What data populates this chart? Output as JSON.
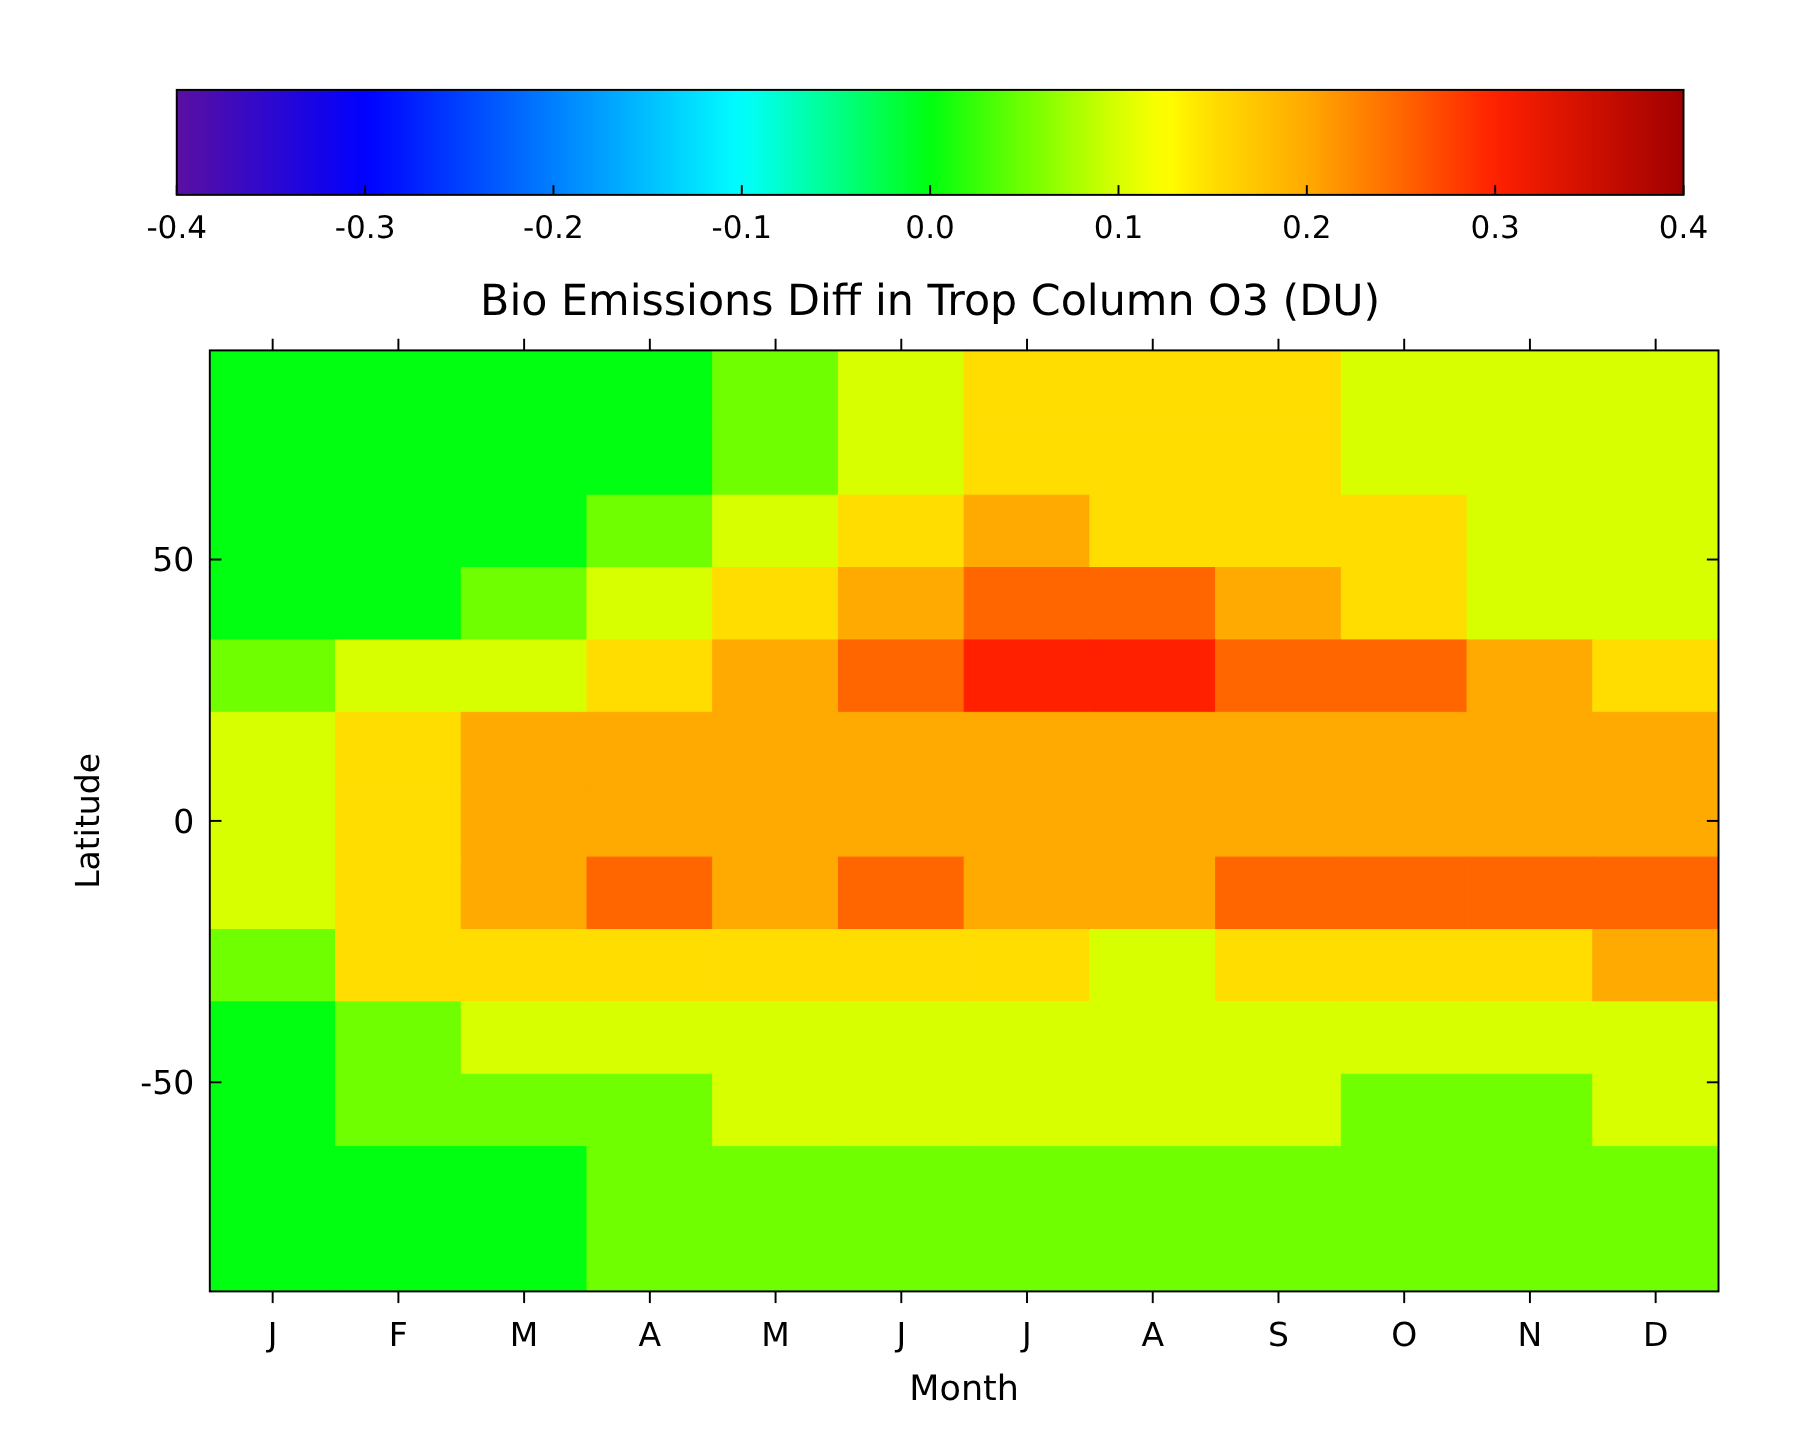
{
  "chart_data": {
    "type": "heatmap",
    "xlabel": "Month",
    "ylabel": "Latitude",
    "clabel": "Bio Emissions Diff in Trop Column O3 (DU)",
    "categories": [
      "J",
      "F",
      "M",
      "A",
      "M",
      "J",
      "J",
      "A",
      "S",
      "O",
      "N",
      "D"
    ],
    "ylim": [
      -90,
      90
    ],
    "yticks": [
      -50,
      0,
      50
    ],
    "clim": [
      -0.4,
      0.4
    ],
    "cticks": [
      -0.4,
      -0.3,
      -0.2,
      -0.1,
      {
        "value": 0,
        "label": "0.0"
      },
      0.1,
      0.2,
      0.3,
      0.4
    ],
    "cells": [
      [
        0,
        0,
        0,
        0,
        0.05,
        0.1,
        0.15,
        0.15,
        0.15,
        0.1,
        0.1,
        0.1
      ],
      [
        0,
        0,
        0,
        0,
        0.05,
        0.1,
        0.15,
        0.15,
        0.15,
        0.1,
        0.1,
        0.1
      ],
      [
        0,
        0,
        0,
        0.05,
        0.1,
        0.15,
        0.2,
        0.15,
        0.15,
        0.15,
        0.1,
        0.1
      ],
      [
        0,
        0,
        0.05,
        0.1,
        0.15,
        0.2,
        0.25,
        0.25,
        0.2,
        0.15,
        0.1,
        0.1
      ],
      [
        0.05,
        0.1,
        0.1,
        0.15,
        0.2,
        0.25,
        0.3,
        0.3,
        0.25,
        0.25,
        0.2,
        0.15
      ],
      [
        0.1,
        0.15,
        0.2,
        0.2,
        0.2,
        0.2,
        0.2,
        0.2,
        0.2,
        0.2,
        0.2,
        0.2
      ],
      [
        0.1,
        0.15,
        0.2,
        0.2,
        0.2,
        0.2,
        0.2,
        0.2,
        0.2,
        0.2,
        0.2,
        0.2
      ],
      [
        0.1,
        0.15,
        0.2,
        0.25,
        0.2,
        0.25,
        0.2,
        0.2,
        0.25,
        0.25,
        0.25,
        0.25
      ],
      [
        0.05,
        0.15,
        0.15,
        0.15,
        0.15,
        0.15,
        0.15,
        0.1,
        0.15,
        0.15,
        0.15,
        0.2
      ],
      [
        0,
        0.05,
        0.1,
        0.1,
        0.1,
        0.1,
        0.1,
        0.1,
        0.1,
        0.1,
        0.1,
        0.1
      ],
      [
        0,
        0.05,
        0.05,
        0.05,
        0.1,
        0.1,
        0.1,
        0.1,
        0.1,
        0.05,
        0.05,
        0.1
      ],
      [
        0,
        0,
        0,
        0.05,
        0.05,
        0.05,
        0.05,
        0.05,
        0.05,
        0.05,
        0.05,
        0.05
      ],
      [
        0,
        0,
        0,
        0.05,
        0.05,
        0.05,
        0.05,
        0.05,
        0.05,
        0.05,
        0.05,
        0.05
      ]
    ]
  }
}
